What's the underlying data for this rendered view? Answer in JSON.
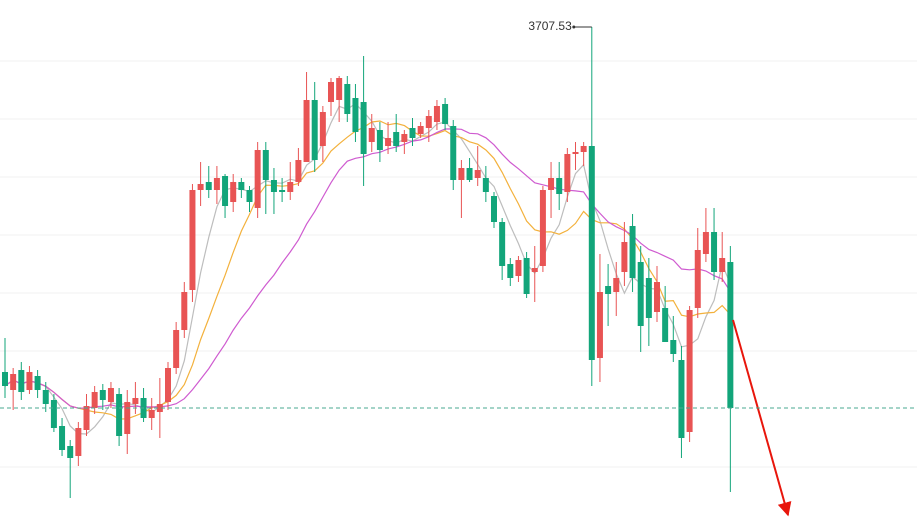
{
  "chart_data": {
    "type": "candlestick",
    "ohlc": [
      [
        3535,
        3552,
        3522,
        3528
      ],
      [
        3526,
        3537,
        3516,
        3534
      ],
      [
        3536,
        3540,
        3521,
        3525
      ],
      [
        3526,
        3538,
        3524,
        3535
      ],
      [
        3533,
        3536,
        3522,
        3526
      ],
      [
        3526,
        3530,
        3515,
        3519
      ],
      [
        3521,
        3524,
        3505,
        3507
      ],
      [
        3508,
        3512,
        3493,
        3496
      ],
      [
        3498,
        3501,
        3472,
        3492
      ],
      [
        3493,
        3510,
        3488,
        3507
      ],
      [
        3506,
        3524,
        3503,
        3518
      ],
      [
        3517,
        3528,
        3514,
        3525
      ],
      [
        3526,
        3529,
        3516,
        3521
      ],
      [
        3520,
        3530,
        3517,
        3527
      ],
      [
        3524,
        3527,
        3498,
        3503
      ],
      [
        3504,
        3526,
        3494,
        3520
      ],
      [
        3519,
        3530,
        3514,
        3522
      ],
      [
        3522,
        3527,
        3510,
        3512
      ],
      [
        3512,
        3522,
        3506,
        3516
      ],
      [
        3515,
        3532,
        3502,
        3519
      ],
      [
        3520,
        3540,
        3516,
        3537
      ],
      [
        3537,
        3560,
        3534,
        3556
      ],
      [
        3556,
        3580,
        3552,
        3575
      ],
      [
        3576,
        3629,
        3570,
        3626
      ],
      [
        3626,
        3640,
        3618,
        3629
      ],
      [
        3630,
        3638,
        3622,
        3626
      ],
      [
        3626,
        3638,
        3619,
        3632
      ],
      [
        3633,
        3634,
        3612,
        3618
      ],
      [
        3620,
        3634,
        3615,
        3630
      ],
      [
        3630,
        3632,
        3622,
        3626
      ],
      [
        3626,
        3628,
        3615,
        3620
      ],
      [
        3617,
        3650,
        3612,
        3646
      ],
      [
        3646,
        3650,
        3614,
        3631
      ],
      [
        3631,
        3637,
        3614,
        3625
      ],
      [
        3626,
        3632,
        3620,
        3625
      ],
      [
        3625,
        3640,
        3621,
        3630
      ],
      [
        3630,
        3647,
        3628,
        3641
      ],
      [
        3640,
        3685,
        3640,
        3671
      ],
      [
        3671,
        3680,
        3635,
        3641
      ],
      [
        3648,
        3668,
        3640,
        3665
      ],
      [
        3670,
        3682,
        3663,
        3680
      ],
      [
        3671,
        3683,
        3660,
        3682
      ],
      [
        3679,
        3683,
        3660,
        3664
      ],
      [
        3672,
        3679,
        3650,
        3655
      ],
      [
        3670,
        3693,
        3628,
        3644
      ],
      [
        3650,
        3664,
        3645,
        3657
      ],
      [
        3656,
        3660,
        3640,
        3646
      ],
      [
        3648,
        3660,
        3644,
        3652
      ],
      [
        3655,
        3664,
        3645,
        3648
      ],
      [
        3650,
        3656,
        3644,
        3654
      ],
      [
        3657,
        3662,
        3648,
        3652
      ],
      [
        3654,
        3660,
        3652,
        3658
      ],
      [
        3657,
        3666,
        3650,
        3663
      ],
      [
        3660,
        3671,
        3656,
        3668
      ],
      [
        3669,
        3672,
        3656,
        3659
      ],
      [
        3658,
        3661,
        3626,
        3631
      ],
      [
        3631,
        3641,
        3612,
        3637
      ],
      [
        3637,
        3642,
        3630,
        3631
      ],
      [
        3632,
        3648,
        3628,
        3636
      ],
      [
        3632,
        3638,
        3620,
        3625
      ],
      [
        3623,
        3625,
        3607,
        3610
      ],
      [
        3610,
        3612,
        3581,
        3588
      ],
      [
        3589,
        3592,
        3578,
        3582
      ],
      [
        3583,
        3593,
        3580,
        3591
      ],
      [
        3592,
        3595,
        3572,
        3574
      ],
      [
        3585,
        3598,
        3570,
        3587
      ],
      [
        3588,
        3628,
        3585,
        3626
      ],
      [
        3626,
        3640,
        3612,
        3632
      ],
      [
        3632,
        3640,
        3616,
        3624
      ],
      [
        3625,
        3647,
        3620,
        3644
      ],
      [
        3644,
        3650,
        3636,
        3645
      ],
      [
        3645,
        3650,
        3638,
        3648
      ],
      [
        3648,
        3707.53,
        3528,
        3541
      ],
      [
        3542,
        3594,
        3530,
        3575
      ],
      [
        3578,
        3589,
        3558,
        3574
      ],
      [
        3575,
        3590,
        3563,
        3582
      ],
      [
        3585,
        3610,
        3578,
        3600
      ],
      [
        3608,
        3614,
        3575,
        3582
      ],
      [
        3590,
        3598,
        3545,
        3558
      ],
      [
        3582,
        3592,
        3548,
        3562
      ],
      [
        3565,
        3588,
        3560,
        3580
      ],
      [
        3567,
        3578,
        3550,
        3550
      ],
      [
        3551,
        3563,
        3540,
        3544
      ],
      [
        3541,
        3548,
        3492,
        3502
      ],
      [
        3505,
        3568,
        3500,
        3566
      ],
      [
        3567,
        3607,
        3562,
        3596
      ],
      [
        3594,
        3617,
        3590,
        3605
      ],
      [
        3605,
        3617,
        3581,
        3585
      ],
      [
        3585,
        3605,
        3580,
        3592
      ],
      [
        3590,
        3598,
        3475,
        3517
      ]
    ],
    "up_color": "#e85454",
    "down_color": "#12a57a",
    "moving_averages": [
      {
        "period": 5,
        "color": "#bdbdbd"
      },
      {
        "period": 10,
        "color": "#f3b13c"
      },
      {
        "period": 20,
        "color": "#cf5bd0"
      }
    ],
    "max_label": "3707.53",
    "ylim": [
      3457.5,
      3721
    ],
    "yticks": [
      3690.5,
      3661.5,
      3632.5,
      3603.5,
      3574.5,
      3545.5,
      3487.5
    ],
    "grid": true,
    "last_price_line": true
  }
}
